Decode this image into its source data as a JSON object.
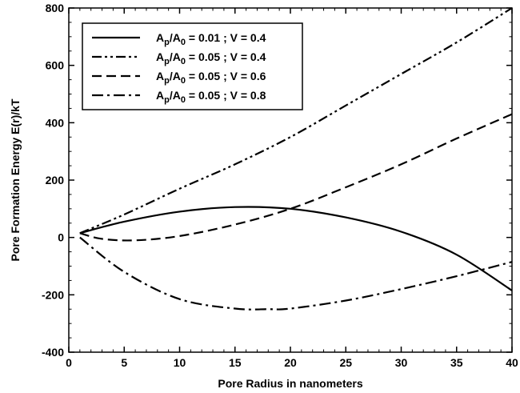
{
  "chart_data": {
    "type": "line",
    "xlabel": "Pore Radius in nanometers",
    "ylabel": "Pore Formation Energy E(r)/kT",
    "xlim": [
      0,
      40
    ],
    "ylim": [
      -400,
      800
    ],
    "x_ticks": [
      0,
      5,
      10,
      15,
      20,
      25,
      30,
      35,
      40
    ],
    "y_ticks": [
      -400,
      -200,
      0,
      200,
      400,
      600,
      800
    ],
    "legend_position": "top-left",
    "grid": false,
    "series": [
      {
        "label_parts": {
          "a": "A",
          "sub1": "p",
          "mid": "/A",
          "sub2": "0",
          "rest": " = 0.01 ; V = 0.4"
        },
        "dash": "solid",
        "x": [
          1,
          5,
          10,
          15,
          20,
          25,
          30,
          35,
          40
        ],
        "y": [
          15,
          55,
          90,
          106,
          100,
          70,
          20,
          -60,
          -185
        ]
      },
      {
        "label_parts": {
          "a": "A",
          "sub1": "p",
          "mid": "/A",
          "sub2": "0",
          "rest": " = 0.05 ; V = 0.4"
        },
        "dash": "dash-dot-dot",
        "x": [
          1,
          5,
          10,
          15,
          20,
          25,
          30,
          35,
          40
        ],
        "y": [
          15,
          80,
          170,
          255,
          350,
          460,
          570,
          680,
          800
        ]
      },
      {
        "label_parts": {
          "a": "A",
          "sub1": "p",
          "mid": "/A",
          "sub2": "0",
          "rest": " = 0.05 ; V = 0.6"
        },
        "dash": "dashed",
        "x": [
          1,
          3,
          6,
          10,
          15,
          20,
          25,
          30,
          35,
          40
        ],
        "y": [
          15,
          -5,
          -10,
          5,
          45,
          100,
          175,
          255,
          345,
          430
        ]
      },
      {
        "label_parts": {
          "a": "A",
          "sub1": "p",
          "mid": "/A",
          "sub2": "0",
          "rest": " = 0.05 ; V = 0.8"
        },
        "dash": "dash-dot",
        "x": [
          1,
          5,
          10,
          15,
          18,
          20,
          25,
          30,
          35,
          40
        ],
        "y": [
          0,
          -120,
          -215,
          -248,
          -250,
          -248,
          -220,
          -180,
          -135,
          -85
        ]
      }
    ]
  }
}
